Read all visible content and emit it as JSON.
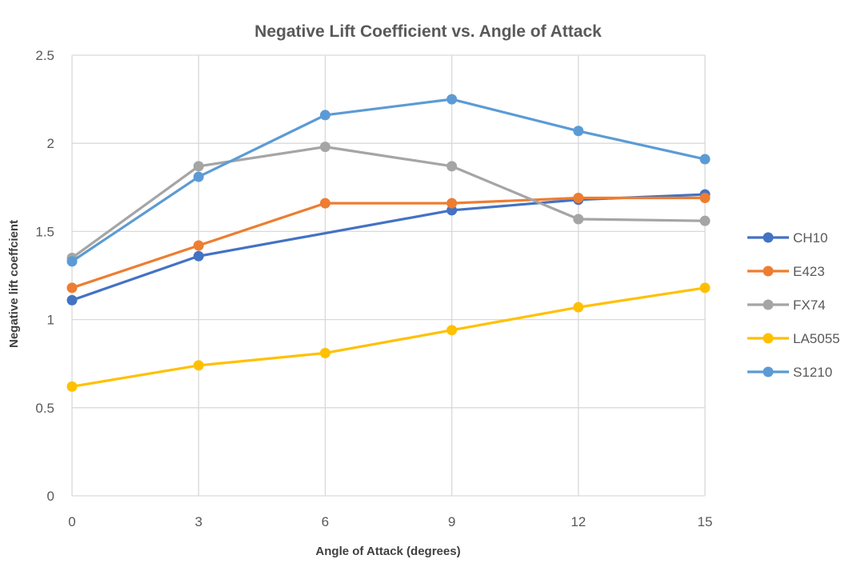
{
  "chart_data": {
    "type": "line",
    "title": "Negative Lift Coefficient vs. Angle of Attack",
    "xlabel": "Angle of Attack (degrees)",
    "ylabel": "Negative lift coeffcient",
    "x": [
      0,
      3,
      6,
      9,
      12,
      15
    ],
    "x_tick_labels": [
      "0",
      "3",
      "6",
      "9",
      "12",
      "15"
    ],
    "y_tick_labels": [
      "0",
      "0.5",
      "1",
      "1.5",
      "2",
      "2.5"
    ],
    "xlim": [
      0,
      15
    ],
    "ylim": [
      0,
      2.5
    ],
    "grid": "on",
    "legend_position": "right",
    "series": [
      {
        "name": "CH10",
        "color": "#4472c4",
        "values": [
          1.11,
          1.36,
          null,
          1.62,
          1.68,
          1.71
        ]
      },
      {
        "name": "E423",
        "color": "#ed7d31",
        "values": [
          1.18,
          1.42,
          1.66,
          1.66,
          1.69,
          1.69
        ]
      },
      {
        "name": "FX74",
        "color": "#a5a5a5",
        "values": [
          1.35,
          1.87,
          1.98,
          1.87,
          1.57,
          1.56
        ]
      },
      {
        "name": "LA5055",
        "color": "#ffc000",
        "values": [
          0.62,
          0.74,
          0.81,
          0.94,
          1.07,
          1.18
        ]
      },
      {
        "name": "S1210",
        "color": "#5b9bd5",
        "values": [
          1.33,
          1.81,
          2.16,
          2.25,
          2.07,
          1.91
        ]
      }
    ]
  }
}
